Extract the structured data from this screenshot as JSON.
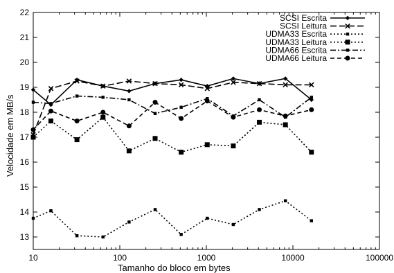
{
  "chart_data": {
    "type": "line",
    "xscale": "log",
    "xlim": [
      10,
      100000
    ],
    "ylim": [
      12.5,
      22
    ],
    "xticks": [
      10,
      100,
      1000,
      10000,
      100000
    ],
    "xtick_labels": [
      "10",
      "100",
      "1000",
      "10000",
      "100000"
    ],
    "yticks": [
      13,
      14,
      15,
      16,
      17,
      18,
      19,
      20,
      21,
      22
    ],
    "ytick_labels": [
      "13",
      "14",
      "15",
      "16",
      "17",
      "18",
      "19",
      "20",
      "21",
      "22"
    ],
    "xlabel": "Tamanho do bloco em bytes",
    "ylabel": "Velocidade em MB/s",
    "legend_position": "top-right",
    "x": [
      10,
      16,
      32,
      64,
      128,
      256,
      512,
      1024,
      2048,
      4096,
      8192,
      16384
    ],
    "series": [
      {
        "name": "SCSI Escrita",
        "dash": "solid",
        "marker": "diamond",
        "values": [
          18.9,
          18.3,
          19.3,
          19.05,
          18.85,
          19.15,
          19.3,
          19.05,
          19.35,
          19.15,
          19.35,
          18.5
        ]
      },
      {
        "name": "SCSI Leitura",
        "dash": "long-dash",
        "marker": "x",
        "values": [
          17.1,
          18.95,
          19.25,
          19.05,
          19.25,
          19.15,
          19.1,
          18.95,
          19.2,
          19.15,
          19.1,
          19.1
        ]
      },
      {
        "name": "UDMA33 Escrita",
        "dash": "dot",
        "marker": "small-square",
        "values": [
          13.75,
          14.05,
          13.05,
          13.0,
          13.6,
          14.1,
          13.1,
          13.75,
          13.5,
          14.1,
          14.45,
          13.65
        ]
      },
      {
        "name": "UDMA33 Leitura",
        "dash": "dot",
        "marker": "square",
        "values": [
          17.0,
          17.65,
          16.9,
          17.8,
          16.45,
          16.95,
          16.4,
          16.7,
          16.65,
          17.6,
          17.5,
          16.4
        ]
      },
      {
        "name": "UDMA66 Escrita",
        "dash": "dash-dot",
        "marker": "small-square",
        "values": [
          18.4,
          18.35,
          18.65,
          18.6,
          18.5,
          17.95,
          18.2,
          18.55,
          17.85,
          18.5,
          17.8,
          18.6
        ]
      },
      {
        "name": "UDMA66 Leitura",
        "dash": "dash",
        "marker": "circle",
        "values": [
          17.3,
          18.05,
          17.65,
          18.0,
          17.45,
          18.4,
          17.75,
          18.45,
          17.8,
          18.1,
          17.85,
          18.1
        ]
      }
    ]
  }
}
